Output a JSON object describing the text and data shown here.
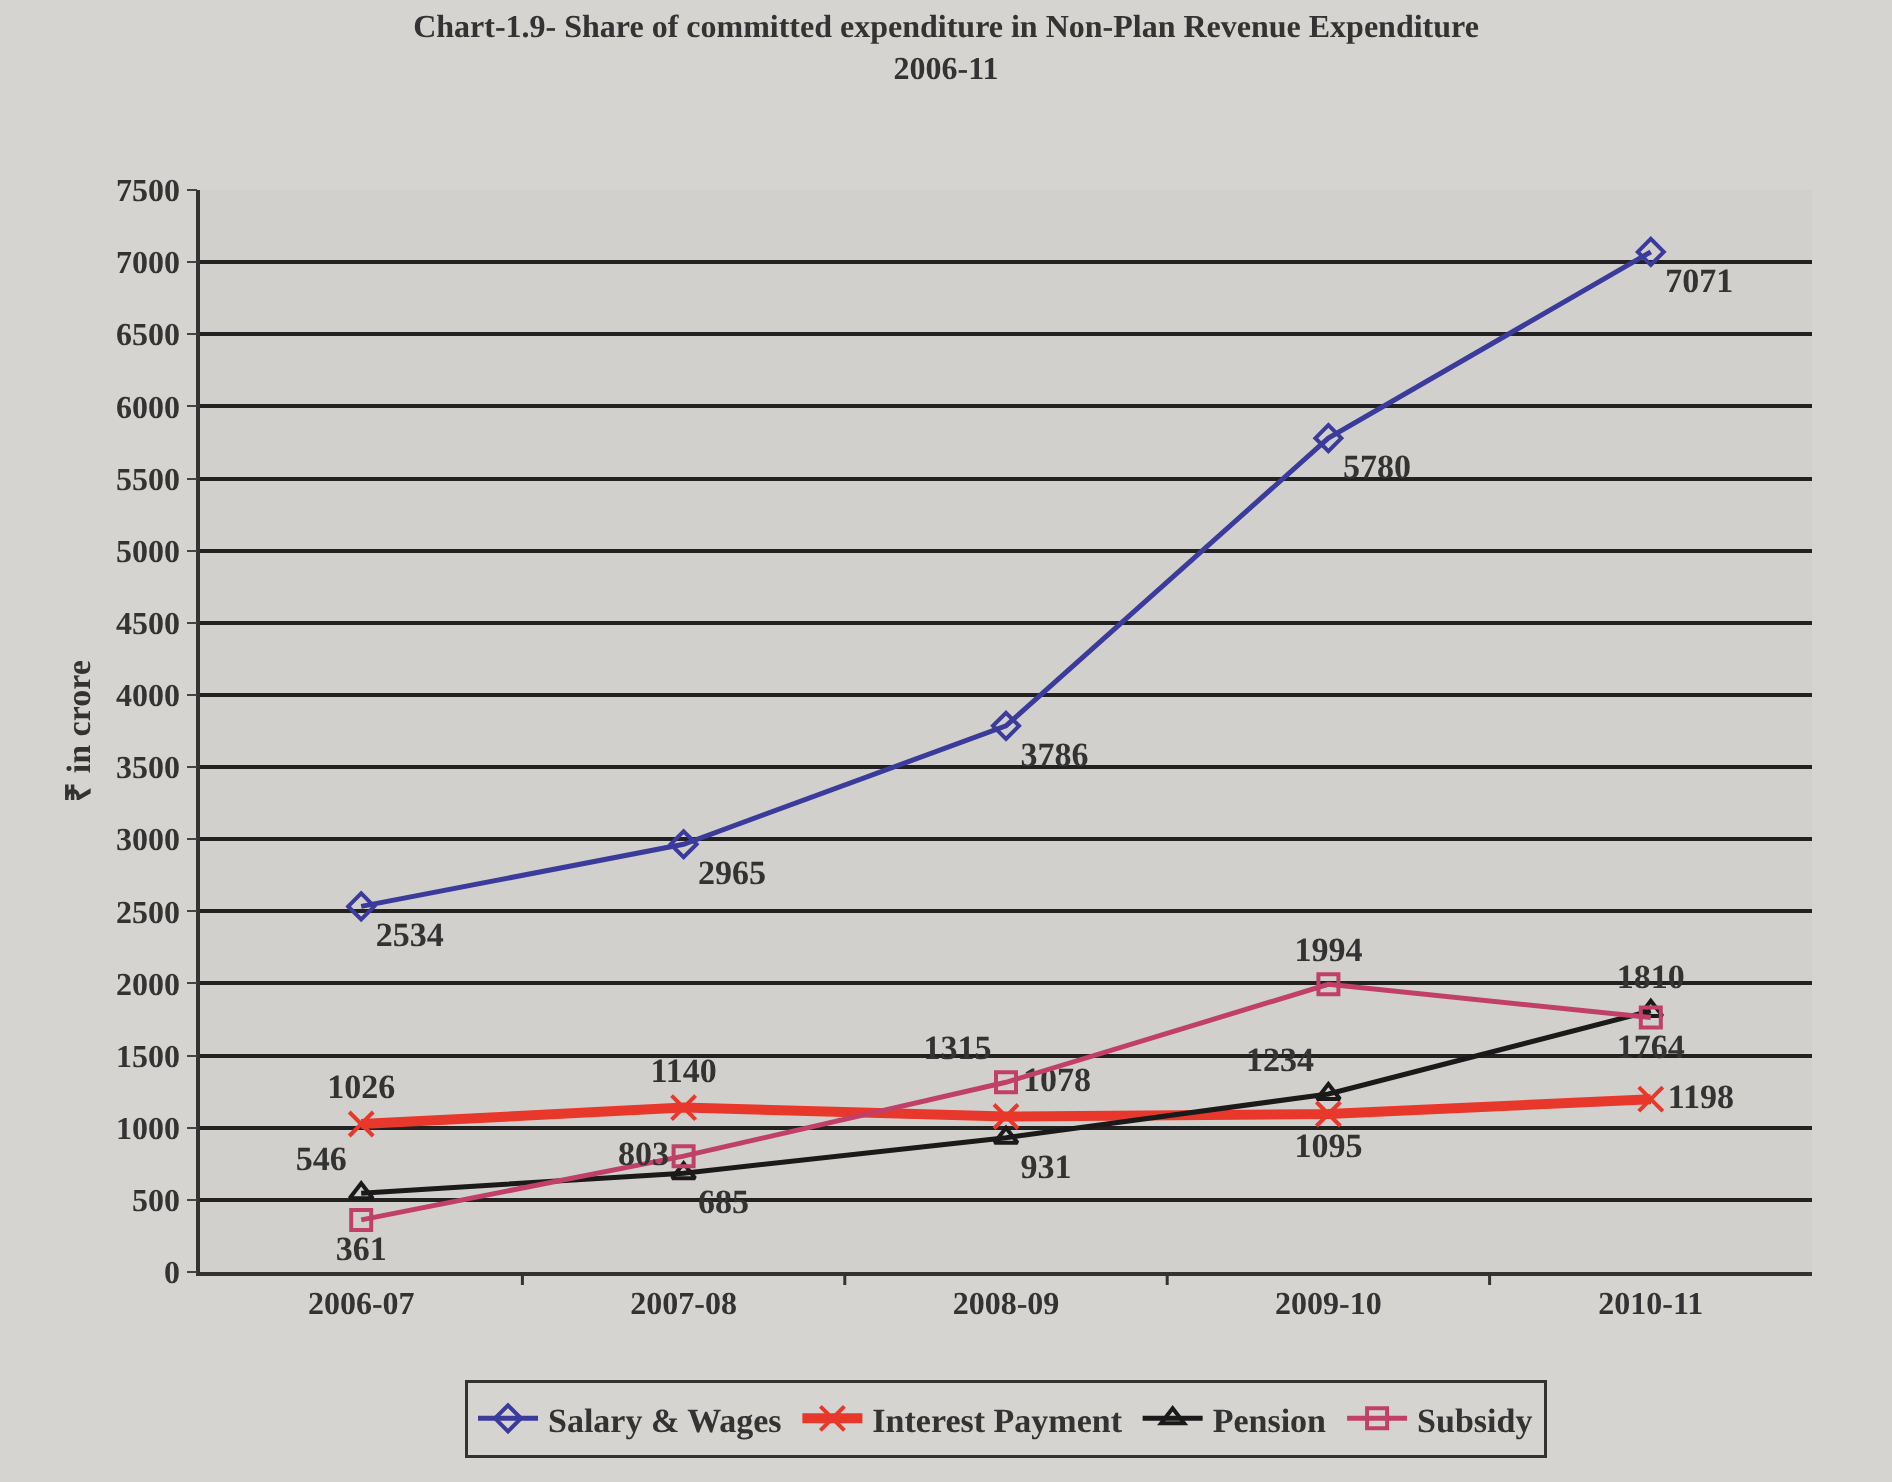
{
  "chart_data": {
    "type": "line",
    "title": "Chart-1.9- Share of committed expenditure in Non-Plan Revenue Expenditure\n2006-11",
    "ylabel": "₹ in crore",
    "categories": [
      "2006-07",
      "2007-08",
      "2008-09",
      "2009-10",
      "2010-11"
    ],
    "series": [
      {
        "name": "Salary & Wages",
        "color": "#3b3b9c",
        "marker": "diamond",
        "values": [
          2534,
          2965,
          3786,
          5780,
          7071
        ]
      },
      {
        "name": "Interest Payment",
        "color": "#e8382c",
        "marker": "cross",
        "values": [
          1026,
          1140,
          1078,
          1095,
          1198
        ]
      },
      {
        "name": "Pension",
        "color": "#1a1a1a",
        "marker": "triangle",
        "values": [
          546,
          685,
          931,
          1234,
          1810
        ]
      },
      {
        "name": "Subsidy",
        "color": "#c0406a",
        "marker": "square",
        "values": [
          361,
          803,
          1315,
          1994,
          1764
        ]
      }
    ],
    "ylim": [
      0,
      7500
    ],
    "yticks": [
      0,
      500,
      1000,
      1500,
      2000,
      2500,
      3000,
      3500,
      4000,
      4500,
      5000,
      5500,
      6000,
      6500,
      7000,
      7500
    ],
    "grid": "y",
    "legend": "bottom",
    "data_labels": true
  }
}
